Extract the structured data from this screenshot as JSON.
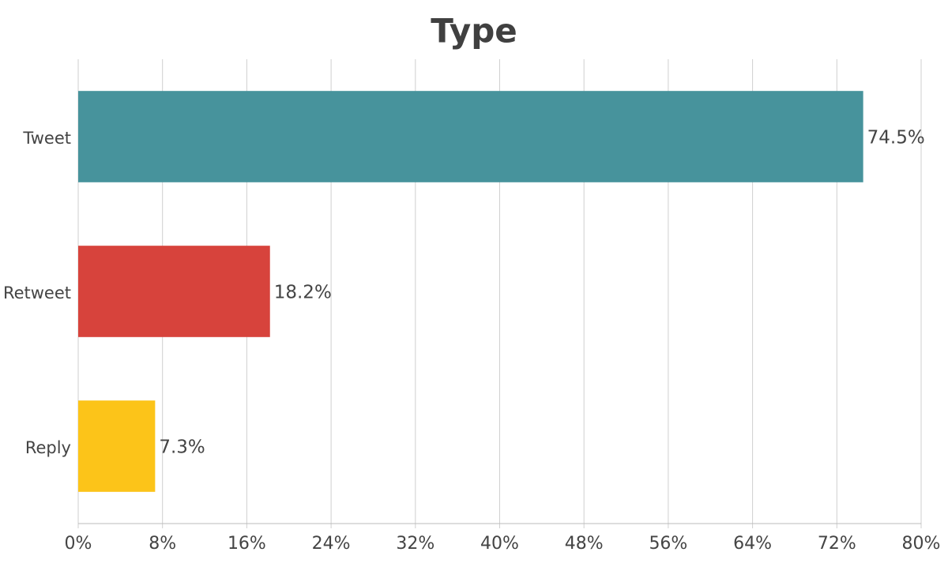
{
  "chart_data": {
    "type": "bar",
    "orientation": "horizontal",
    "title": "Type",
    "categories": [
      "Tweet",
      "Retweet",
      "Reply"
    ],
    "values": [
      74.5,
      18.2,
      7.3
    ],
    "value_labels": [
      "74.5%",
      "18.2%",
      "7.3%"
    ],
    "colors": [
      "#47939c",
      "#d7433c",
      "#fcc419"
    ],
    "xlim": [
      0,
      80
    ],
    "xticks": [
      {
        "value": 0,
        "label": "0%"
      },
      {
        "value": 8,
        "label": "8%"
      },
      {
        "value": 16,
        "label": "16%"
      },
      {
        "value": 24,
        "label": "24%"
      },
      {
        "value": 32,
        "label": "32%"
      },
      {
        "value": 40,
        "label": "40%"
      },
      {
        "value": 48,
        "label": "48%"
      },
      {
        "value": 56,
        "label": "56%"
      },
      {
        "value": 64,
        "label": "64%"
      },
      {
        "value": 72,
        "label": "72%"
      },
      {
        "value": 80,
        "label": "80%"
      }
    ],
    "grid": true
  }
}
